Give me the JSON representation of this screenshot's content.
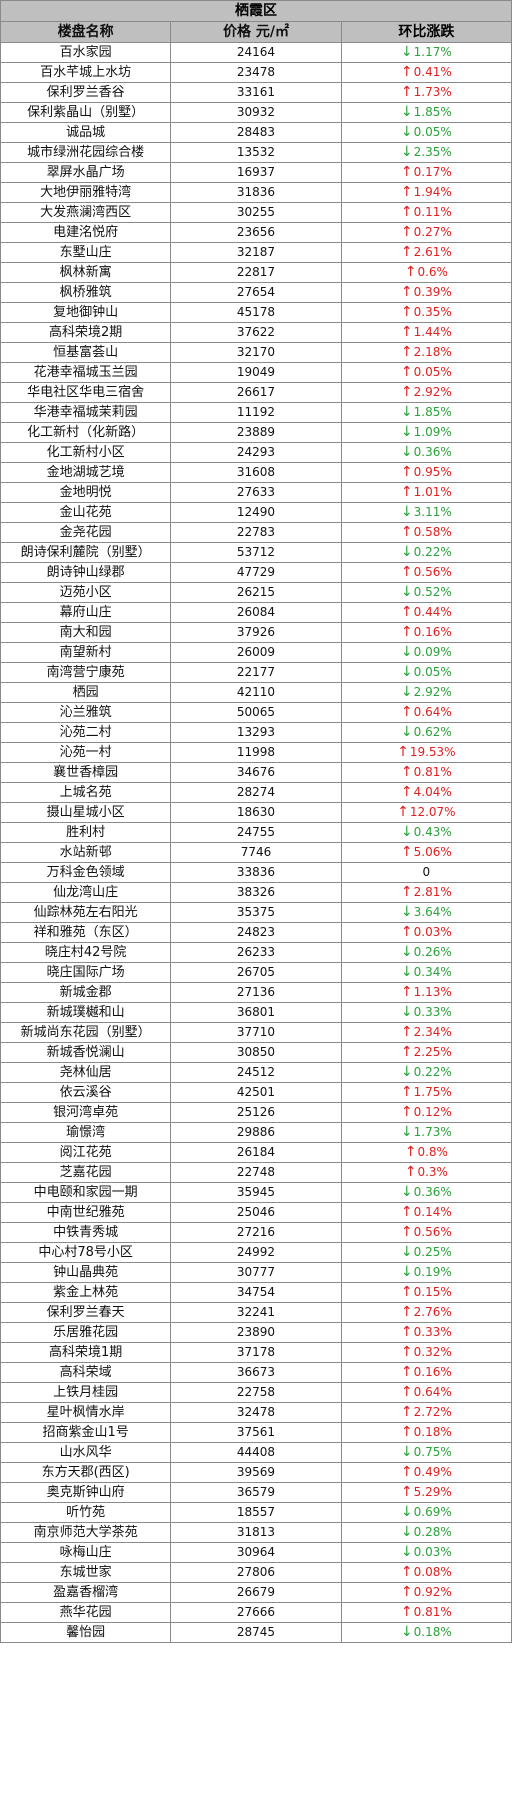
{
  "district": "栖霞区",
  "columns": {
    "name": "楼盘名称",
    "price": "价格 元/㎡",
    "change": "环比涨跌"
  },
  "colors": {
    "up": "#e02020",
    "down": "#2aa33a",
    "header_bg": "#bfbfbf"
  },
  "rows": [
    {
      "name": "百水家园",
      "price": "24164",
      "dir": "down",
      "change": "1.17%"
    },
    {
      "name": "百水芊城上水坊",
      "price": "23478",
      "dir": "up",
      "change": "0.41%"
    },
    {
      "name": "保利罗兰香谷",
      "price": "33161",
      "dir": "up",
      "change": "1.73%"
    },
    {
      "name": "保利紫晶山（别墅）",
      "price": "30932",
      "dir": "down",
      "change": "1.85%"
    },
    {
      "name": "诚品城",
      "price": "28483",
      "dir": "down",
      "change": "0.05%"
    },
    {
      "name": "城市绿洲花园综合楼",
      "price": "13532",
      "dir": "down",
      "change": "2.35%"
    },
    {
      "name": "翠屏水晶广场",
      "price": "16937",
      "dir": "up",
      "change": "0.17%"
    },
    {
      "name": "大地伊丽雅特湾",
      "price": "31836",
      "dir": "up",
      "change": "1.94%"
    },
    {
      "name": "大发燕澜湾西区",
      "price": "30255",
      "dir": "up",
      "change": "0.11%"
    },
    {
      "name": "电建洺悦府",
      "price": "23656",
      "dir": "up",
      "change": "0.27%"
    },
    {
      "name": "东墅山庄",
      "price": "32187",
      "dir": "up",
      "change": "2.61%"
    },
    {
      "name": "枫林新寓",
      "price": "22817",
      "dir": "up",
      "change": "0.6%"
    },
    {
      "name": "枫桥雅筑",
      "price": "27654",
      "dir": "up",
      "change": "0.39%"
    },
    {
      "name": "复地御钟山",
      "price": "45178",
      "dir": "up",
      "change": "0.35%"
    },
    {
      "name": "高科荣境2期",
      "price": "37622",
      "dir": "up",
      "change": "1.44%"
    },
    {
      "name": "恒基富荟山",
      "price": "32170",
      "dir": "up",
      "change": "2.18%"
    },
    {
      "name": "花港幸福城玉兰园",
      "price": "19049",
      "dir": "up",
      "change": "0.05%"
    },
    {
      "name": "华电社区华电三宿舍",
      "price": "26617",
      "dir": "up",
      "change": "2.92%"
    },
    {
      "name": "华港幸福城茉莉园",
      "price": "11192",
      "dir": "down",
      "change": "1.85%"
    },
    {
      "name": "化工新村（化新路）",
      "price": "23889",
      "dir": "down",
      "change": "1.09%"
    },
    {
      "name": "化工新村小区",
      "price": "24293",
      "dir": "down",
      "change": "0.36%"
    },
    {
      "name": "金地湖城艺境",
      "price": "31608",
      "dir": "up",
      "change": "0.95%"
    },
    {
      "name": "金地明悦",
      "price": "27633",
      "dir": "up",
      "change": "1.01%"
    },
    {
      "name": "金山花苑",
      "price": "12490",
      "dir": "down",
      "change": "3.11%"
    },
    {
      "name": "金尧花园",
      "price": "22783",
      "dir": "up",
      "change": "0.58%"
    },
    {
      "name": "朗诗保利麓院（别墅）",
      "price": "53712",
      "dir": "down",
      "change": "0.22%"
    },
    {
      "name": "朗诗钟山绿郡",
      "price": "47729",
      "dir": "up",
      "change": "0.56%"
    },
    {
      "name": "迈苑小区",
      "price": "26215",
      "dir": "down",
      "change": "0.52%"
    },
    {
      "name": "幕府山庄",
      "price": "26084",
      "dir": "up",
      "change": "0.44%"
    },
    {
      "name": "南大和园",
      "price": "37926",
      "dir": "up",
      "change": "0.16%"
    },
    {
      "name": "南望新村",
      "price": "26009",
      "dir": "down",
      "change": "0.09%"
    },
    {
      "name": "南湾营宁康苑",
      "price": "22177",
      "dir": "down",
      "change": "0.05%"
    },
    {
      "name": "栖园",
      "price": "42110",
      "dir": "down",
      "change": "2.92%"
    },
    {
      "name": "沁兰雅筑",
      "price": "50065",
      "dir": "up",
      "change": "0.64%"
    },
    {
      "name": "沁苑二村",
      "price": "13293",
      "dir": "down",
      "change": "0.62%"
    },
    {
      "name": "沁苑一村",
      "price": "11998",
      "dir": "up",
      "change": "19.53%"
    },
    {
      "name": "襄世香樟园",
      "price": "34676",
      "dir": "up",
      "change": "0.81%"
    },
    {
      "name": "上城名苑",
      "price": "28274",
      "dir": "up",
      "change": "4.04%"
    },
    {
      "name": "摄山星城小区",
      "price": "18630",
      "dir": "up",
      "change": "12.07%"
    },
    {
      "name": "胜利村",
      "price": "24755",
      "dir": "down",
      "change": "0.43%"
    },
    {
      "name": "水站新邨",
      "price": "7746",
      "dir": "up",
      "change": "5.06%"
    },
    {
      "name": "万科金色领域",
      "price": "33836",
      "dir": "flat",
      "change": "0"
    },
    {
      "name": "仙龙湾山庄",
      "price": "38326",
      "dir": "up",
      "change": "2.81%"
    },
    {
      "name": "仙踪林苑左右阳光",
      "price": "35375",
      "dir": "down",
      "change": "3.64%"
    },
    {
      "name": "祥和雅苑（东区）",
      "price": "24823",
      "dir": "up",
      "change": "0.03%"
    },
    {
      "name": "晓庄村42号院",
      "price": "26233",
      "dir": "down",
      "change": "0.26%"
    },
    {
      "name": "晓庄国际广场",
      "price": "26705",
      "dir": "down",
      "change": "0.34%"
    },
    {
      "name": "新城金郡",
      "price": "27136",
      "dir": "up",
      "change": "1.13%"
    },
    {
      "name": "新城璞樾和山",
      "price": "36801",
      "dir": "down",
      "change": "0.33%"
    },
    {
      "name": "新城尚东花园（别墅）",
      "price": "37710",
      "dir": "up",
      "change": "2.34%"
    },
    {
      "name": "新城香悦澜山",
      "price": "30850",
      "dir": "up",
      "change": "2.25%"
    },
    {
      "name": "尧林仙居",
      "price": "24512",
      "dir": "down",
      "change": "0.22%"
    },
    {
      "name": "依云溪谷",
      "price": "42501",
      "dir": "up",
      "change": "1.75%"
    },
    {
      "name": "银河湾卓苑",
      "price": "25126",
      "dir": "up",
      "change": "0.12%"
    },
    {
      "name": "瑜憬湾",
      "price": "29886",
      "dir": "down",
      "change": "1.73%"
    },
    {
      "name": "阅江花苑",
      "price": "26184",
      "dir": "up",
      "change": "0.8%"
    },
    {
      "name": "芝嘉花园",
      "price": "22748",
      "dir": "up",
      "change": "0.3%"
    },
    {
      "name": "中电颐和家园一期",
      "price": "35945",
      "dir": "down",
      "change": "0.36%"
    },
    {
      "name": "中南世纪雅苑",
      "price": "25046",
      "dir": "up",
      "change": "0.14%"
    },
    {
      "name": "中铁青秀城",
      "price": "27216",
      "dir": "up",
      "change": "0.56%"
    },
    {
      "name": "中心村78号小区",
      "price": "24992",
      "dir": "down",
      "change": "0.25%"
    },
    {
      "name": "钟山晶典苑",
      "price": "30777",
      "dir": "down",
      "change": "0.19%"
    },
    {
      "name": "紫金上林苑",
      "price": "34754",
      "dir": "up",
      "change": "0.15%"
    },
    {
      "name": "保利罗兰春天",
      "price": "32241",
      "dir": "up",
      "change": "2.76%"
    },
    {
      "name": "乐居雅花园",
      "price": "23890",
      "dir": "up",
      "change": "0.33%"
    },
    {
      "name": "高科荣境1期",
      "price": "37178",
      "dir": "up",
      "change": "0.32%"
    },
    {
      "name": "高科荣域",
      "price": "36673",
      "dir": "up",
      "change": "0.16%"
    },
    {
      "name": "上铁月桂园",
      "price": "22758",
      "dir": "up",
      "change": "0.64%"
    },
    {
      "name": "星叶枫情水岸",
      "price": "32478",
      "dir": "up",
      "change": "2.72%"
    },
    {
      "name": "招商紫金山1号",
      "price": "37561",
      "dir": "up",
      "change": "0.18%"
    },
    {
      "name": "山水风华",
      "price": "44408",
      "dir": "down",
      "change": "0.75%"
    },
    {
      "name": "东方天郡(西区)",
      "price": "39569",
      "dir": "up",
      "change": "0.49%"
    },
    {
      "name": "奥克斯钟山府",
      "price": "36579",
      "dir": "up",
      "change": "5.29%"
    },
    {
      "name": "听竹苑",
      "price": "18557",
      "dir": "down",
      "change": "0.69%"
    },
    {
      "name": "南京师范大学茶苑",
      "price": "31813",
      "dir": "down",
      "change": "0.28%"
    },
    {
      "name": "咏梅山庄",
      "price": "30964",
      "dir": "down",
      "change": "0.03%"
    },
    {
      "name": "东城世家",
      "price": "27806",
      "dir": "up",
      "change": "0.08%"
    },
    {
      "name": "盈嘉香榴湾",
      "price": "26679",
      "dir": "up",
      "change": "0.92%"
    },
    {
      "name": "燕华花园",
      "price": "27666",
      "dir": "up",
      "change": "0.81%"
    },
    {
      "name": "馨怡园",
      "price": "28745",
      "dir": "down",
      "change": "0.18%"
    }
  ]
}
